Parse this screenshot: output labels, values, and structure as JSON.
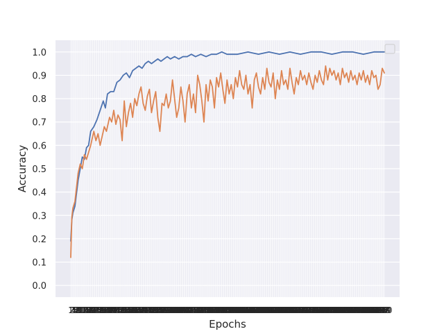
{
  "chart_data": {
    "type": "line",
    "title": "",
    "xlabel": "Epochs",
    "ylabel": "Accuracy",
    "xlim": [
      1,
      300
    ],
    "ylim": [
      -0.05,
      1.05
    ],
    "y_ticks": [
      0.0,
      0.1,
      0.2,
      0.3,
      0.4,
      0.5,
      0.6,
      0.7,
      0.8,
      0.9,
      1.0
    ],
    "x_ticks": "every epoch (1-300), labels overlapping",
    "grid": true,
    "legend": {
      "placement": "top-right",
      "entries": []
    },
    "colors": {
      "background": "#EAEAF2",
      "grid": "#FFFFFF",
      "series_1": "#4C72B0",
      "series_2": "#DD8452"
    },
    "series": [
      {
        "color": "#4C72B0",
        "points": [
          [
            1,
            0.19
          ],
          [
            2,
            0.28
          ],
          [
            3,
            0.31
          ],
          [
            5,
            0.34
          ],
          [
            8,
            0.45
          ],
          [
            10,
            0.5
          ],
          [
            12,
            0.55
          ],
          [
            14,
            0.54
          ],
          [
            16,
            0.59
          ],
          [
            18,
            0.6
          ],
          [
            20,
            0.66
          ],
          [
            23,
            0.68
          ],
          [
            26,
            0.71
          ],
          [
            29,
            0.75
          ],
          [
            32,
            0.79
          ],
          [
            34,
            0.76
          ],
          [
            36,
            0.82
          ],
          [
            39,
            0.83
          ],
          [
            42,
            0.83
          ],
          [
            45,
            0.87
          ],
          [
            48,
            0.88
          ],
          [
            51,
            0.9
          ],
          [
            54,
            0.91
          ],
          [
            57,
            0.89
          ],
          [
            60,
            0.92
          ],
          [
            63,
            0.93
          ],
          [
            66,
            0.94
          ],
          [
            69,
            0.93
          ],
          [
            72,
            0.95
          ],
          [
            75,
            0.96
          ],
          [
            78,
            0.95
          ],
          [
            81,
            0.96
          ],
          [
            84,
            0.97
          ],
          [
            87,
            0.96
          ],
          [
            90,
            0.97
          ],
          [
            93,
            0.98
          ],
          [
            96,
            0.97
          ],
          [
            100,
            0.98
          ],
          [
            104,
            0.97
          ],
          [
            108,
            0.98
          ],
          [
            112,
            0.98
          ],
          [
            116,
            0.99
          ],
          [
            120,
            0.98
          ],
          [
            125,
            0.99
          ],
          [
            130,
            0.98
          ],
          [
            135,
            0.99
          ],
          [
            140,
            0.99
          ],
          [
            145,
            1.0
          ],
          [
            150,
            0.99
          ],
          [
            160,
            0.99
          ],
          [
            170,
            1.0
          ],
          [
            180,
            0.99
          ],
          [
            190,
            1.0
          ],
          [
            200,
            0.99
          ],
          [
            210,
            1.0
          ],
          [
            220,
            0.99
          ],
          [
            230,
            1.0
          ],
          [
            240,
            1.0
          ],
          [
            250,
            0.99
          ],
          [
            260,
            1.0
          ],
          [
            270,
            1.0
          ],
          [
            280,
            0.99
          ],
          [
            290,
            1.0
          ],
          [
            300,
            1.0
          ]
        ]
      },
      {
        "color": "#DD8452",
        "points": [
          [
            1,
            0.12
          ],
          [
            2,
            0.29
          ],
          [
            3,
            0.33
          ],
          [
            5,
            0.36
          ],
          [
            8,
            0.48
          ],
          [
            10,
            0.52
          ],
          [
            12,
            0.5
          ],
          [
            14,
            0.56
          ],
          [
            16,
            0.54
          ],
          [
            18,
            0.57
          ],
          [
            20,
            0.6
          ],
          [
            23,
            0.66
          ],
          [
            25,
            0.62
          ],
          [
            27,
            0.65
          ],
          [
            29,
            0.6
          ],
          [
            31,
            0.64
          ],
          [
            33,
            0.68
          ],
          [
            35,
            0.66
          ],
          [
            38,
            0.72
          ],
          [
            40,
            0.7
          ],
          [
            42,
            0.75
          ],
          [
            44,
            0.69
          ],
          [
            46,
            0.73
          ],
          [
            48,
            0.71
          ],
          [
            50,
            0.62
          ],
          [
            52,
            0.79
          ],
          [
            54,
            0.68
          ],
          [
            56,
            0.74
          ],
          [
            58,
            0.78
          ],
          [
            60,
            0.72
          ],
          [
            62,
            0.8
          ],
          [
            64,
            0.77
          ],
          [
            66,
            0.82
          ],
          [
            68,
            0.85
          ],
          [
            70,
            0.78
          ],
          [
            72,
            0.75
          ],
          [
            74,
            0.81
          ],
          [
            76,
            0.84
          ],
          [
            78,
            0.74
          ],
          [
            80,
            0.79
          ],
          [
            82,
            0.83
          ],
          [
            84,
            0.72
          ],
          [
            86,
            0.66
          ],
          [
            88,
            0.78
          ],
          [
            90,
            0.77
          ],
          [
            92,
            0.82
          ],
          [
            94,
            0.76
          ],
          [
            96,
            0.79
          ],
          [
            98,
            0.88
          ],
          [
            100,
            0.8
          ],
          [
            102,
            0.72
          ],
          [
            104,
            0.76
          ],
          [
            106,
            0.85
          ],
          [
            108,
            0.79
          ],
          [
            110,
            0.7
          ],
          [
            112,
            0.82
          ],
          [
            114,
            0.86
          ],
          [
            116,
            0.76
          ],
          [
            118,
            0.82
          ],
          [
            120,
            0.74
          ],
          [
            122,
            0.9
          ],
          [
            124,
            0.86
          ],
          [
            126,
            0.79
          ],
          [
            128,
            0.7
          ],
          [
            130,
            0.86
          ],
          [
            132,
            0.79
          ],
          [
            134,
            0.88
          ],
          [
            136,
            0.85
          ],
          [
            138,
            0.76
          ],
          [
            140,
            0.89
          ],
          [
            142,
            0.85
          ],
          [
            144,
            0.91
          ],
          [
            146,
            0.84
          ],
          [
            148,
            0.78
          ],
          [
            150,
            0.88
          ],
          [
            152,
            0.82
          ],
          [
            154,
            0.86
          ],
          [
            156,
            0.8
          ],
          [
            158,
            0.89
          ],
          [
            160,
            0.85
          ],
          [
            162,
            0.92
          ],
          [
            164,
            0.86
          ],
          [
            166,
            0.84
          ],
          [
            168,
            0.9
          ],
          [
            170,
            0.82
          ],
          [
            172,
            0.86
          ],
          [
            174,
            0.76
          ],
          [
            176,
            0.88
          ],
          [
            178,
            0.91
          ],
          [
            180,
            0.85
          ],
          [
            182,
            0.82
          ],
          [
            184,
            0.89
          ],
          [
            186,
            0.84
          ],
          [
            188,
            0.93
          ],
          [
            190,
            0.87
          ],
          [
            192,
            0.85
          ],
          [
            194,
            0.91
          ],
          [
            196,
            0.8
          ],
          [
            198,
            0.88
          ],
          [
            200,
            0.84
          ],
          [
            202,
            0.92
          ],
          [
            204,
            0.86
          ],
          [
            206,
            0.88
          ],
          [
            208,
            0.84
          ],
          [
            210,
            0.93
          ],
          [
            212,
            0.87
          ],
          [
            214,
            0.82
          ],
          [
            216,
            0.89
          ],
          [
            218,
            0.86
          ],
          [
            220,
            0.92
          ],
          [
            222,
            0.88
          ],
          [
            224,
            0.9
          ],
          [
            226,
            0.86
          ],
          [
            228,
            0.91
          ],
          [
            230,
            0.87
          ],
          [
            232,
            0.84
          ],
          [
            234,
            0.9
          ],
          [
            236,
            0.87
          ],
          [
            238,
            0.92
          ],
          [
            240,
            0.88
          ],
          [
            242,
            0.86
          ],
          [
            244,
            0.94
          ],
          [
            246,
            0.88
          ],
          [
            248,
            0.93
          ],
          [
            250,
            0.9
          ],
          [
            252,
            0.92
          ],
          [
            254,
            0.88
          ],
          [
            256,
            0.91
          ],
          [
            258,
            0.86
          ],
          [
            260,
            0.93
          ],
          [
            262,
            0.89
          ],
          [
            264,
            0.91
          ],
          [
            266,
            0.87
          ],
          [
            268,
            0.92
          ],
          [
            270,
            0.88
          ],
          [
            272,
            0.9
          ],
          [
            274,
            0.86
          ],
          [
            276,
            0.91
          ],
          [
            278,
            0.88
          ],
          [
            280,
            0.92
          ],
          [
            282,
            0.87
          ],
          [
            284,
            0.9
          ],
          [
            286,
            0.86
          ],
          [
            288,
            0.92
          ],
          [
            290,
            0.89
          ],
          [
            292,
            0.9
          ],
          [
            294,
            0.84
          ],
          [
            296,
            0.86
          ],
          [
            298,
            0.93
          ],
          [
            300,
            0.91
          ]
        ]
      }
    ]
  }
}
